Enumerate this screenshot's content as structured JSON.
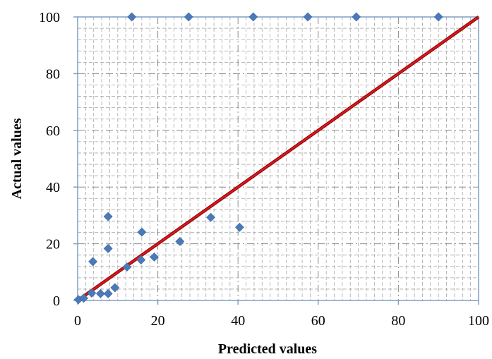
{
  "chart_data": {
    "type": "scatter",
    "xlabel": "Predicted values",
    "ylabel": "Actual values",
    "xlim": [
      0,
      100
    ],
    "ylim": [
      0,
      100
    ],
    "x_ticks": [
      0,
      20,
      40,
      60,
      80,
      100
    ],
    "y_ticks": [
      0,
      20,
      40,
      60,
      80,
      100
    ],
    "grid": true,
    "colors": {
      "points": "#4a7ab8",
      "line": "#e0141e",
      "grid": "#a6a6a6",
      "axis": "#7f9fc4"
    },
    "series": [
      {
        "type": "scatter",
        "x": [
          0.2,
          1.5,
          3.5,
          3.8,
          5.7,
          7.6,
          7.6,
          7.6,
          9.3,
          12.3,
          15.8,
          16.0,
          19.1,
          25.5,
          33.2,
          40.4,
          13.5,
          27.7,
          43.8,
          57.4,
          69.5,
          90.0
        ],
        "y": [
          0.3,
          0.8,
          2.6,
          13.7,
          2.4,
          2.4,
          18.3,
          29.6,
          4.5,
          11.8,
          14.3,
          24.1,
          15.3,
          20.8,
          29.3,
          25.8,
          100,
          100,
          100,
          100,
          100,
          100
        ]
      },
      {
        "type": "line",
        "x": [
          0,
          100
        ],
        "y": [
          0,
          100
        ]
      }
    ]
  }
}
